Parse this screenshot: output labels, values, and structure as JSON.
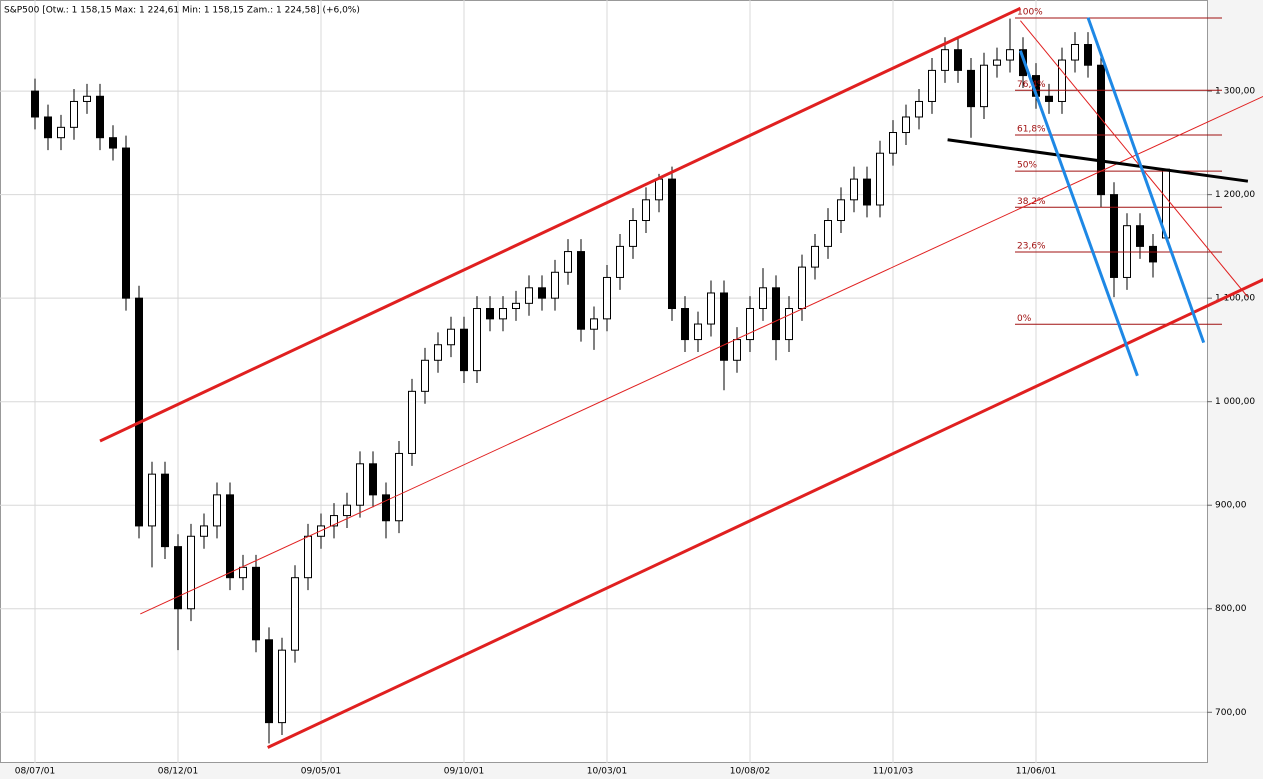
{
  "chart_data": {
    "type": "candlestick",
    "title": "S&P500 [Otw.: 1 158,15  Max: 1 224,61  Min: 1 158,15  Zam.: 1 224,58] (+6,0%)",
    "categories": [
      "08/07/01",
      null,
      null,
      null,
      null,
      null,
      null,
      null,
      null,
      null,
      null,
      "08/12/01",
      null,
      null,
      null,
      null,
      null,
      null,
      null,
      null,
      null,
      null,
      "09/05/01",
      null,
      null,
      null,
      null,
      null,
      null,
      null,
      null,
      null,
      null,
      "09/10/01",
      null,
      null,
      null,
      null,
      null,
      null,
      null,
      null,
      null,
      null,
      "10/03/01",
      null,
      null,
      null,
      null,
      null,
      null,
      null,
      null,
      null,
      null,
      "10/08/02",
      null,
      null,
      null,
      null,
      null,
      null,
      null,
      null,
      null,
      null,
      "11/01/03",
      null,
      null,
      null,
      null,
      null,
      null,
      null,
      null,
      null,
      null,
      "11/06/01",
      null,
      null,
      null,
      null,
      null,
      null,
      null,
      null,
      null,
      null
    ],
    "open": [
      1300,
      1275,
      1255,
      1265,
      1290,
      1295,
      1255,
      1245,
      1100,
      880,
      930,
      860,
      800,
      870,
      880,
      910,
      830,
      840,
      770,
      690,
      760,
      830,
      870,
      880,
      890,
      900,
      940,
      910,
      885,
      950,
      1010,
      1040,
      1055,
      1070,
      1030,
      1090,
      1080,
      1090,
      1095,
      1110,
      1100,
      1125,
      1145,
      1070,
      1080,
      1120,
      1150,
      1175,
      1195,
      1215,
      1090,
      1060,
      1075,
      1105,
      1040,
      1060,
      1090,
      1110,
      1060,
      1090,
      1130,
      1150,
      1175,
      1195,
      1215,
      1190,
      1240,
      1260,
      1275,
      1290,
      1320,
      1340,
      1320,
      1285,
      1325,
      1330,
      1340,
      1315,
      1295,
      1290,
      1330,
      1345,
      1325,
      1200,
      1120,
      1170,
      1150,
      1158.15
    ],
    "high": [
      1312,
      1287,
      1277,
      1302,
      1307,
      1307,
      1267,
      1257,
      1112,
      942,
      942,
      872,
      882,
      892,
      922,
      922,
      852,
      852,
      782,
      772,
      842,
      882,
      892,
      902,
      912,
      952,
      952,
      922,
      962,
      1022,
      1052,
      1067,
      1082,
      1082,
      1102,
      1102,
      1102,
      1107,
      1122,
      1122,
      1137,
      1157,
      1157,
      1092,
      1132,
      1162,
      1187,
      1207,
      1220,
      1227,
      1102,
      1087,
      1117,
      1117,
      1072,
      1102,
      1129,
      1122,
      1102,
      1142,
      1162,
      1187,
      1207,
      1227,
      1227,
      1252,
      1272,
      1287,
      1302,
      1332,
      1352,
      1352,
      1332,
      1337,
      1342,
      1370,
      1352,
      1327,
      1307,
      1342,
      1357,
      1357,
      1337,
      1212,
      1182,
      1182,
      1162,
      1224.61
    ],
    "low": [
      1263,
      1243,
      1243,
      1253,
      1278,
      1243,
      1233,
      1088,
      868,
      840,
      848,
      760,
      788,
      858,
      868,
      818,
      818,
      758,
      670,
      678,
      748,
      818,
      858,
      868,
      878,
      888,
      898,
      868,
      873,
      938,
      998,
      1028,
      1043,
      1018,
      1018,
      1068,
      1068,
      1078,
      1083,
      1088,
      1088,
      1113,
      1058,
      1050,
      1068,
      1108,
      1138,
      1163,
      1183,
      1078,
      1048,
      1048,
      1063,
      1011,
      1028,
      1048,
      1078,
      1040,
      1048,
      1078,
      1118,
      1138,
      1163,
      1183,
      1178,
      1178,
      1228,
      1248,
      1263,
      1278,
      1308,
      1308,
      1255,
      1273,
      1313,
      1318,
      1303,
      1283,
      1278,
      1278,
      1318,
      1313,
      1188,
      1101,
      1108,
      1138,
      1120,
      1158.15
    ],
    "close": [
      1275,
      1255,
      1265,
      1290,
      1295,
      1255,
      1245,
      1100,
      880,
      930,
      860,
      800,
      870,
      880,
      910,
      830,
      840,
      770,
      690,
      760,
      830,
      870,
      880,
      890,
      900,
      940,
      910,
      885,
      950,
      1010,
      1040,
      1055,
      1070,
      1030,
      1090,
      1080,
      1090,
      1095,
      1110,
      1100,
      1125,
      1145,
      1070,
      1080,
      1120,
      1150,
      1175,
      1195,
      1215,
      1090,
      1060,
      1075,
      1105,
      1040,
      1060,
      1090,
      1110,
      1060,
      1090,
      1130,
      1150,
      1175,
      1195,
      1215,
      1190,
      1240,
      1260,
      1275,
      1290,
      1320,
      1340,
      1320,
      1285,
      1325,
      1330,
      1340,
      1315,
      1295,
      1290,
      1330,
      1345,
      1325,
      1200,
      1120,
      1170,
      1150,
      1135,
      1224.58
    ],
    "ylim": [
      651,
      1388
    ],
    "yticks": [
      {
        "value": 700,
        "label": "700,00"
      },
      {
        "value": 800,
        "label": "800,00"
      },
      {
        "value": 900,
        "label": "900,00"
      },
      {
        "value": 1000,
        "label": "1 000,00"
      },
      {
        "value": 1100,
        "label": "1 100,00"
      },
      {
        "value": 1200,
        "label": "1 200,00"
      },
      {
        "value": 1300,
        "label": "1 300,00"
      }
    ],
    "grid": true,
    "up_color": "#ffffff",
    "down_color": "#000000",
    "fibonacci": {
      "color": "#a01010",
      "levels": [
        {
          "value": 1370.58,
          "label": "100%"
        },
        {
          "value": 1300.77,
          "label": "76,4%"
        },
        {
          "value": 1257.58,
          "label": "61,8%"
        },
        {
          "value": 1222.68,
          "label": "50%"
        },
        {
          "value": 1187.77,
          "label": "38,2%"
        },
        {
          "value": 1144.58,
          "label": "23,6%"
        },
        {
          "value": 1074.77,
          "label": "0%"
        }
      ]
    },
    "trendlines": [
      {
        "color": "#e02020",
        "width": 3,
        "x": [
          5,
          75.8
        ],
        "y": [
          962,
          1380
        ]
      },
      {
        "color": "#e02020",
        "width": 3,
        "x": [
          17.9,
          94.5
        ],
        "y": [
          666,
          1118
        ]
      },
      {
        "color": "#e02020",
        "width": 1,
        "x": [
          8.1,
          94.5
        ],
        "y": [
          795,
          1295
        ]
      },
      {
        "color": "#e02020",
        "width": 1,
        "x": [
          75.8,
          93.3
        ],
        "y": [
          1368,
          1101
        ]
      },
      {
        "color": "#000000",
        "width": 3,
        "x": [
          70.2,
          93.3
        ],
        "y": [
          1253,
          1213
        ]
      },
      {
        "color": "#1e88e5",
        "width": 3,
        "x": [
          75.8,
          84.8
        ],
        "y": [
          1339,
          1025
        ]
      },
      {
        "color": "#1e88e5",
        "width": 3,
        "x": [
          81,
          89.9
        ],
        "y": [
          1371,
          1057
        ]
      }
    ]
  }
}
